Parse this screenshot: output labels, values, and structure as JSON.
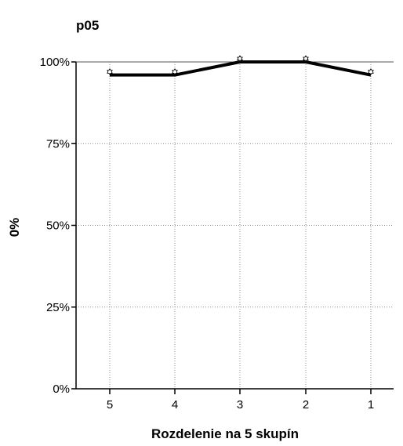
{
  "chart_data": {
    "type": "line",
    "title": "p05",
    "xlabel": "Rozdelenie na 5 skupín",
    "ylabel": "0%",
    "categories": [
      "5",
      "4",
      "3",
      "2",
      "1"
    ],
    "series": [
      {
        "values": [
          96,
          96,
          100,
          100,
          96
        ],
        "color": "#000000"
      }
    ],
    "markers": {
      "values": [
        97,
        97,
        101,
        101,
        97
      ]
    },
    "y_ticks": [
      0,
      25,
      50,
      75,
      100
    ],
    "y_tick_labels": [
      "0%",
      "25%",
      "50%",
      "75%",
      "100%"
    ],
    "ylim": [
      0,
      100
    ],
    "grid": true,
    "grid_style": "dotted",
    "legend": "none",
    "colors": {
      "line": "#000000",
      "grid": "#8c8c8c",
      "axis": "#000000",
      "marker_fill": "#ffffff"
    }
  }
}
